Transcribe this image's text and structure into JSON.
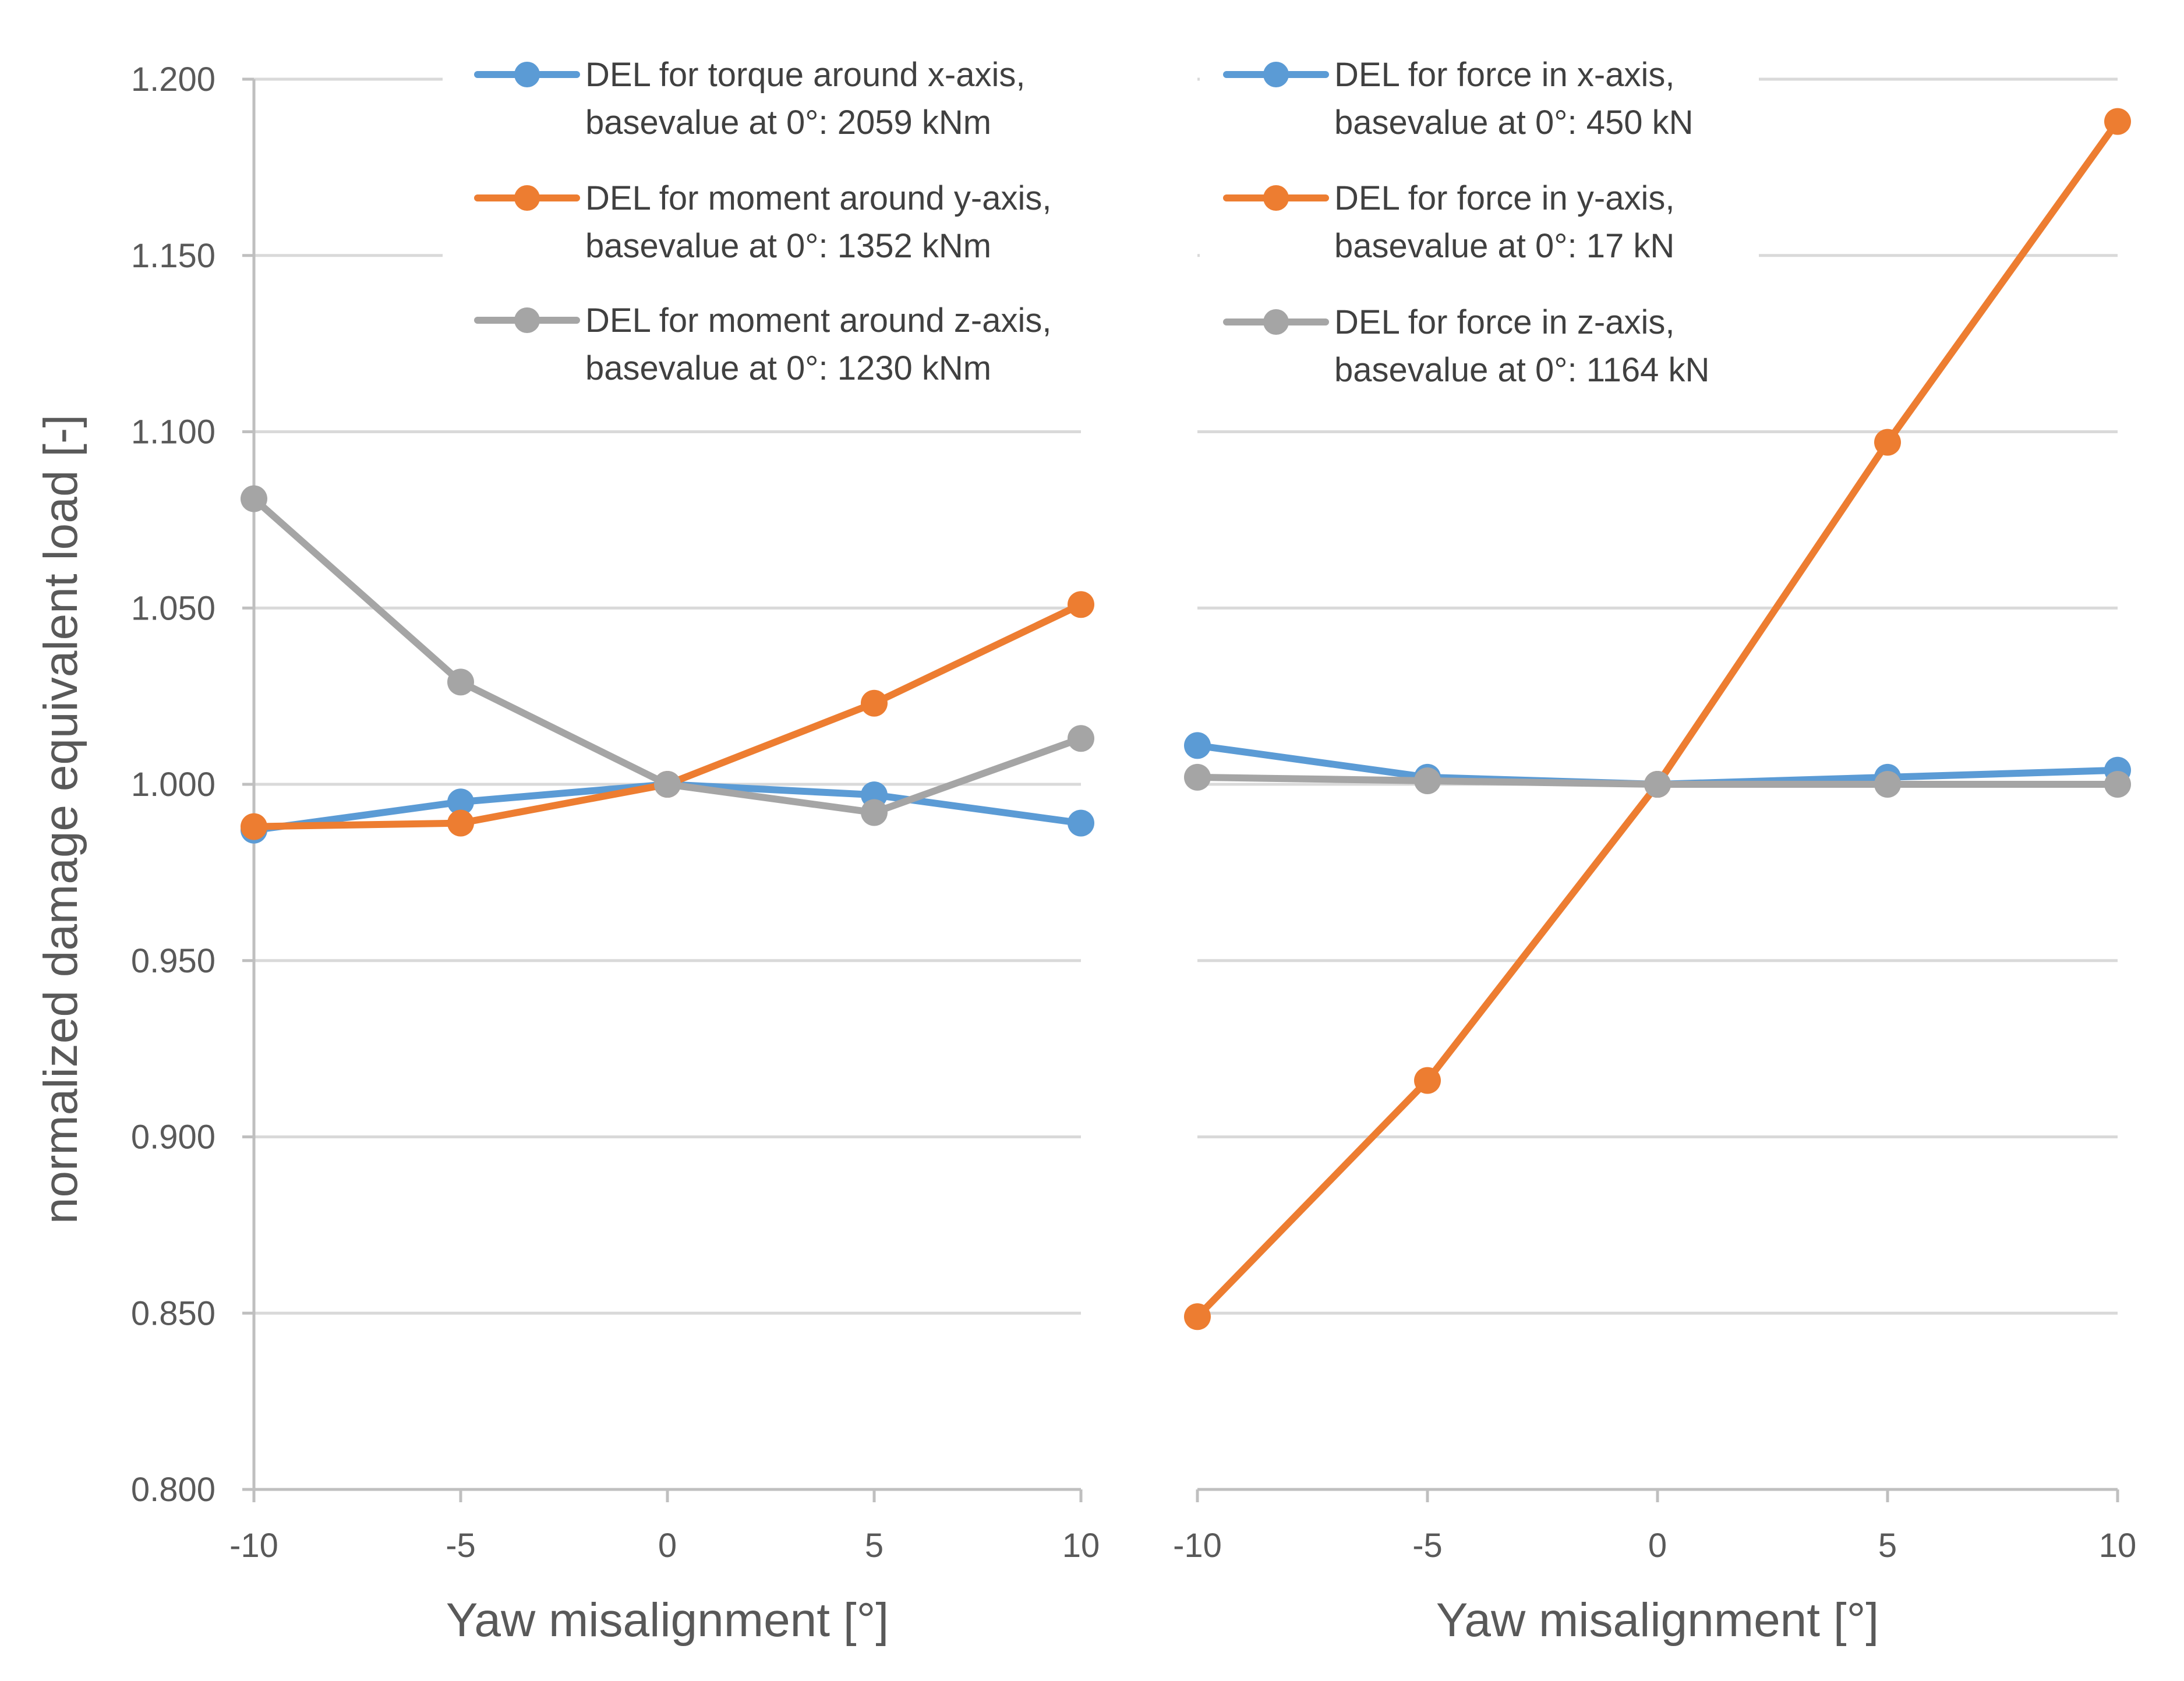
{
  "colors": {
    "blue": "#5b9bd5",
    "orange": "#ed7d31",
    "gray": "#a5a5a5",
    "grid": "#d9d9d9",
    "axis": "#bfbfbf",
    "text": "#595959"
  },
  "chart_data": [
    {
      "type": "line",
      "title": "",
      "xlabel": "Yaw misalignment [°]",
      "ylabel": "normalized damage equivalent load [-]",
      "x": [
        -10,
        -5,
        0,
        5,
        10
      ],
      "x_tick_labels": [
        "-10",
        "-5",
        "0",
        "5",
        "10"
      ],
      "y_tick_labels": [
        "0.800",
        "0.850",
        "0.900",
        "0.950",
        "1.000",
        "1.050",
        "1.100",
        "1.150",
        "1.200"
      ],
      "ylim": [
        0.8,
        1.2
      ],
      "grid": true,
      "legend_position": "top-right",
      "series": [
        {
          "name": "DEL for torque around x-axis,",
          "name2": "basevalue at 0°: 2059 kNm",
          "color": "#5b9bd5",
          "values": [
            0.987,
            0.995,
            1.0,
            0.997,
            0.989
          ]
        },
        {
          "name": "DEL for moment around y-axis,",
          "name2": "basevalue at 0°: 1352 kNm",
          "color": "#ed7d31",
          "values": [
            0.988,
            0.989,
            1.0,
            1.023,
            1.051
          ]
        },
        {
          "name": "DEL for moment around z-axis,",
          "name2": "basevalue at 0°: 1230 kNm",
          "color": "#a5a5a5",
          "values": [
            1.081,
            1.029,
            1.0,
            0.992,
            1.013
          ]
        }
      ]
    },
    {
      "type": "line",
      "title": "",
      "xlabel": "Yaw misalignment [°]",
      "ylabel": "",
      "x": [
        -10,
        -5,
        0,
        5,
        10
      ],
      "x_tick_labels": [
        "-10",
        "-5",
        "0",
        "5",
        "10"
      ],
      "ylim": [
        0.8,
        1.2
      ],
      "grid": true,
      "legend_position": "top-right",
      "series": [
        {
          "name": "DEL for force in x-axis,",
          "name2": "basevalue at 0°: 450 kN",
          "color": "#5b9bd5",
          "values": [
            1.011,
            1.002,
            1.0,
            1.002,
            1.004
          ]
        },
        {
          "name": "DEL for force in y-axis,",
          "name2": "basevalue at 0°: 17 kN",
          "color": "#ed7d31",
          "values": [
            0.849,
            0.916,
            1.0,
            1.097,
            1.188
          ]
        },
        {
          "name": "DEL for force in z-axis,",
          "name2": "basevalue at 0°: 1164 kN",
          "color": "#a5a5a5",
          "values": [
            1.002,
            1.001,
            1.0,
            1.0,
            1.0
          ]
        }
      ]
    }
  ]
}
